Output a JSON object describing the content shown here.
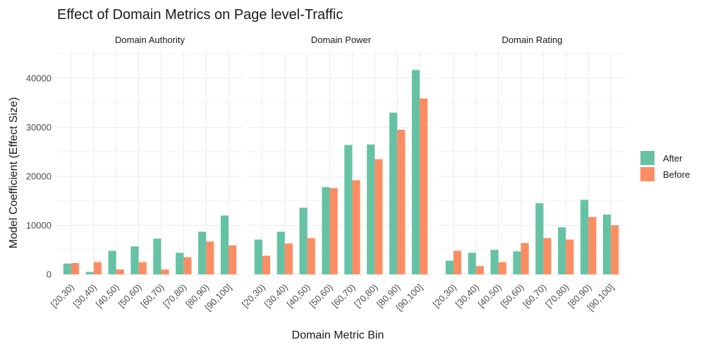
{
  "chart_data": {
    "type": "bar",
    "title": "Effect of Domain Metrics on Page level-Traffic",
    "xlabel": "Domain Metric Bin",
    "ylabel": "Model Coefficient (Effect Size)",
    "ylim": [
      0,
      46000
    ],
    "yticks": [
      0,
      10000,
      20000,
      30000,
      40000
    ],
    "grid": true,
    "legend_position": "right",
    "categories": [
      "[20,30)",
      "[30,40)",
      "[40,50)",
      "[50,60)",
      "[60,70)",
      "[70,80)",
      "[80,90)",
      "[90,100]"
    ],
    "series_names": [
      "After",
      "Before"
    ],
    "colors": {
      "After": "#66c2a5",
      "Before": "#fc8d62"
    },
    "facets": [
      {
        "name": "Domain Authority",
        "series": [
          {
            "name": "After",
            "values": [
              2200,
              500,
              4800,
              5700,
              7300,
              4400,
              8700,
              12000
            ]
          },
          {
            "name": "Before",
            "values": [
              2300,
              2500,
              1000,
              2500,
              1000,
              3500,
              6700,
              5900
            ]
          }
        ]
      },
      {
        "name": "Domain Power",
        "series": [
          {
            "name": "After",
            "values": [
              7100,
              8700,
              13600,
              17800,
              26400,
              26500,
              33000,
              41700
            ]
          },
          {
            "name": "Before",
            "values": [
              3800,
              6300,
              7400,
              17600,
              19200,
              23500,
              29500,
              35900
            ]
          }
        ]
      },
      {
        "name": "Domain Rating",
        "series": [
          {
            "name": "After",
            "values": [
              2800,
              4400,
              5000,
              4700,
              14500,
              9600,
              15200,
              12200
            ]
          },
          {
            "name": "Before",
            "values": [
              4800,
              1700,
              2500,
              6400,
              7400,
              7100,
              11700,
              10000
            ]
          }
        ]
      }
    ]
  }
}
